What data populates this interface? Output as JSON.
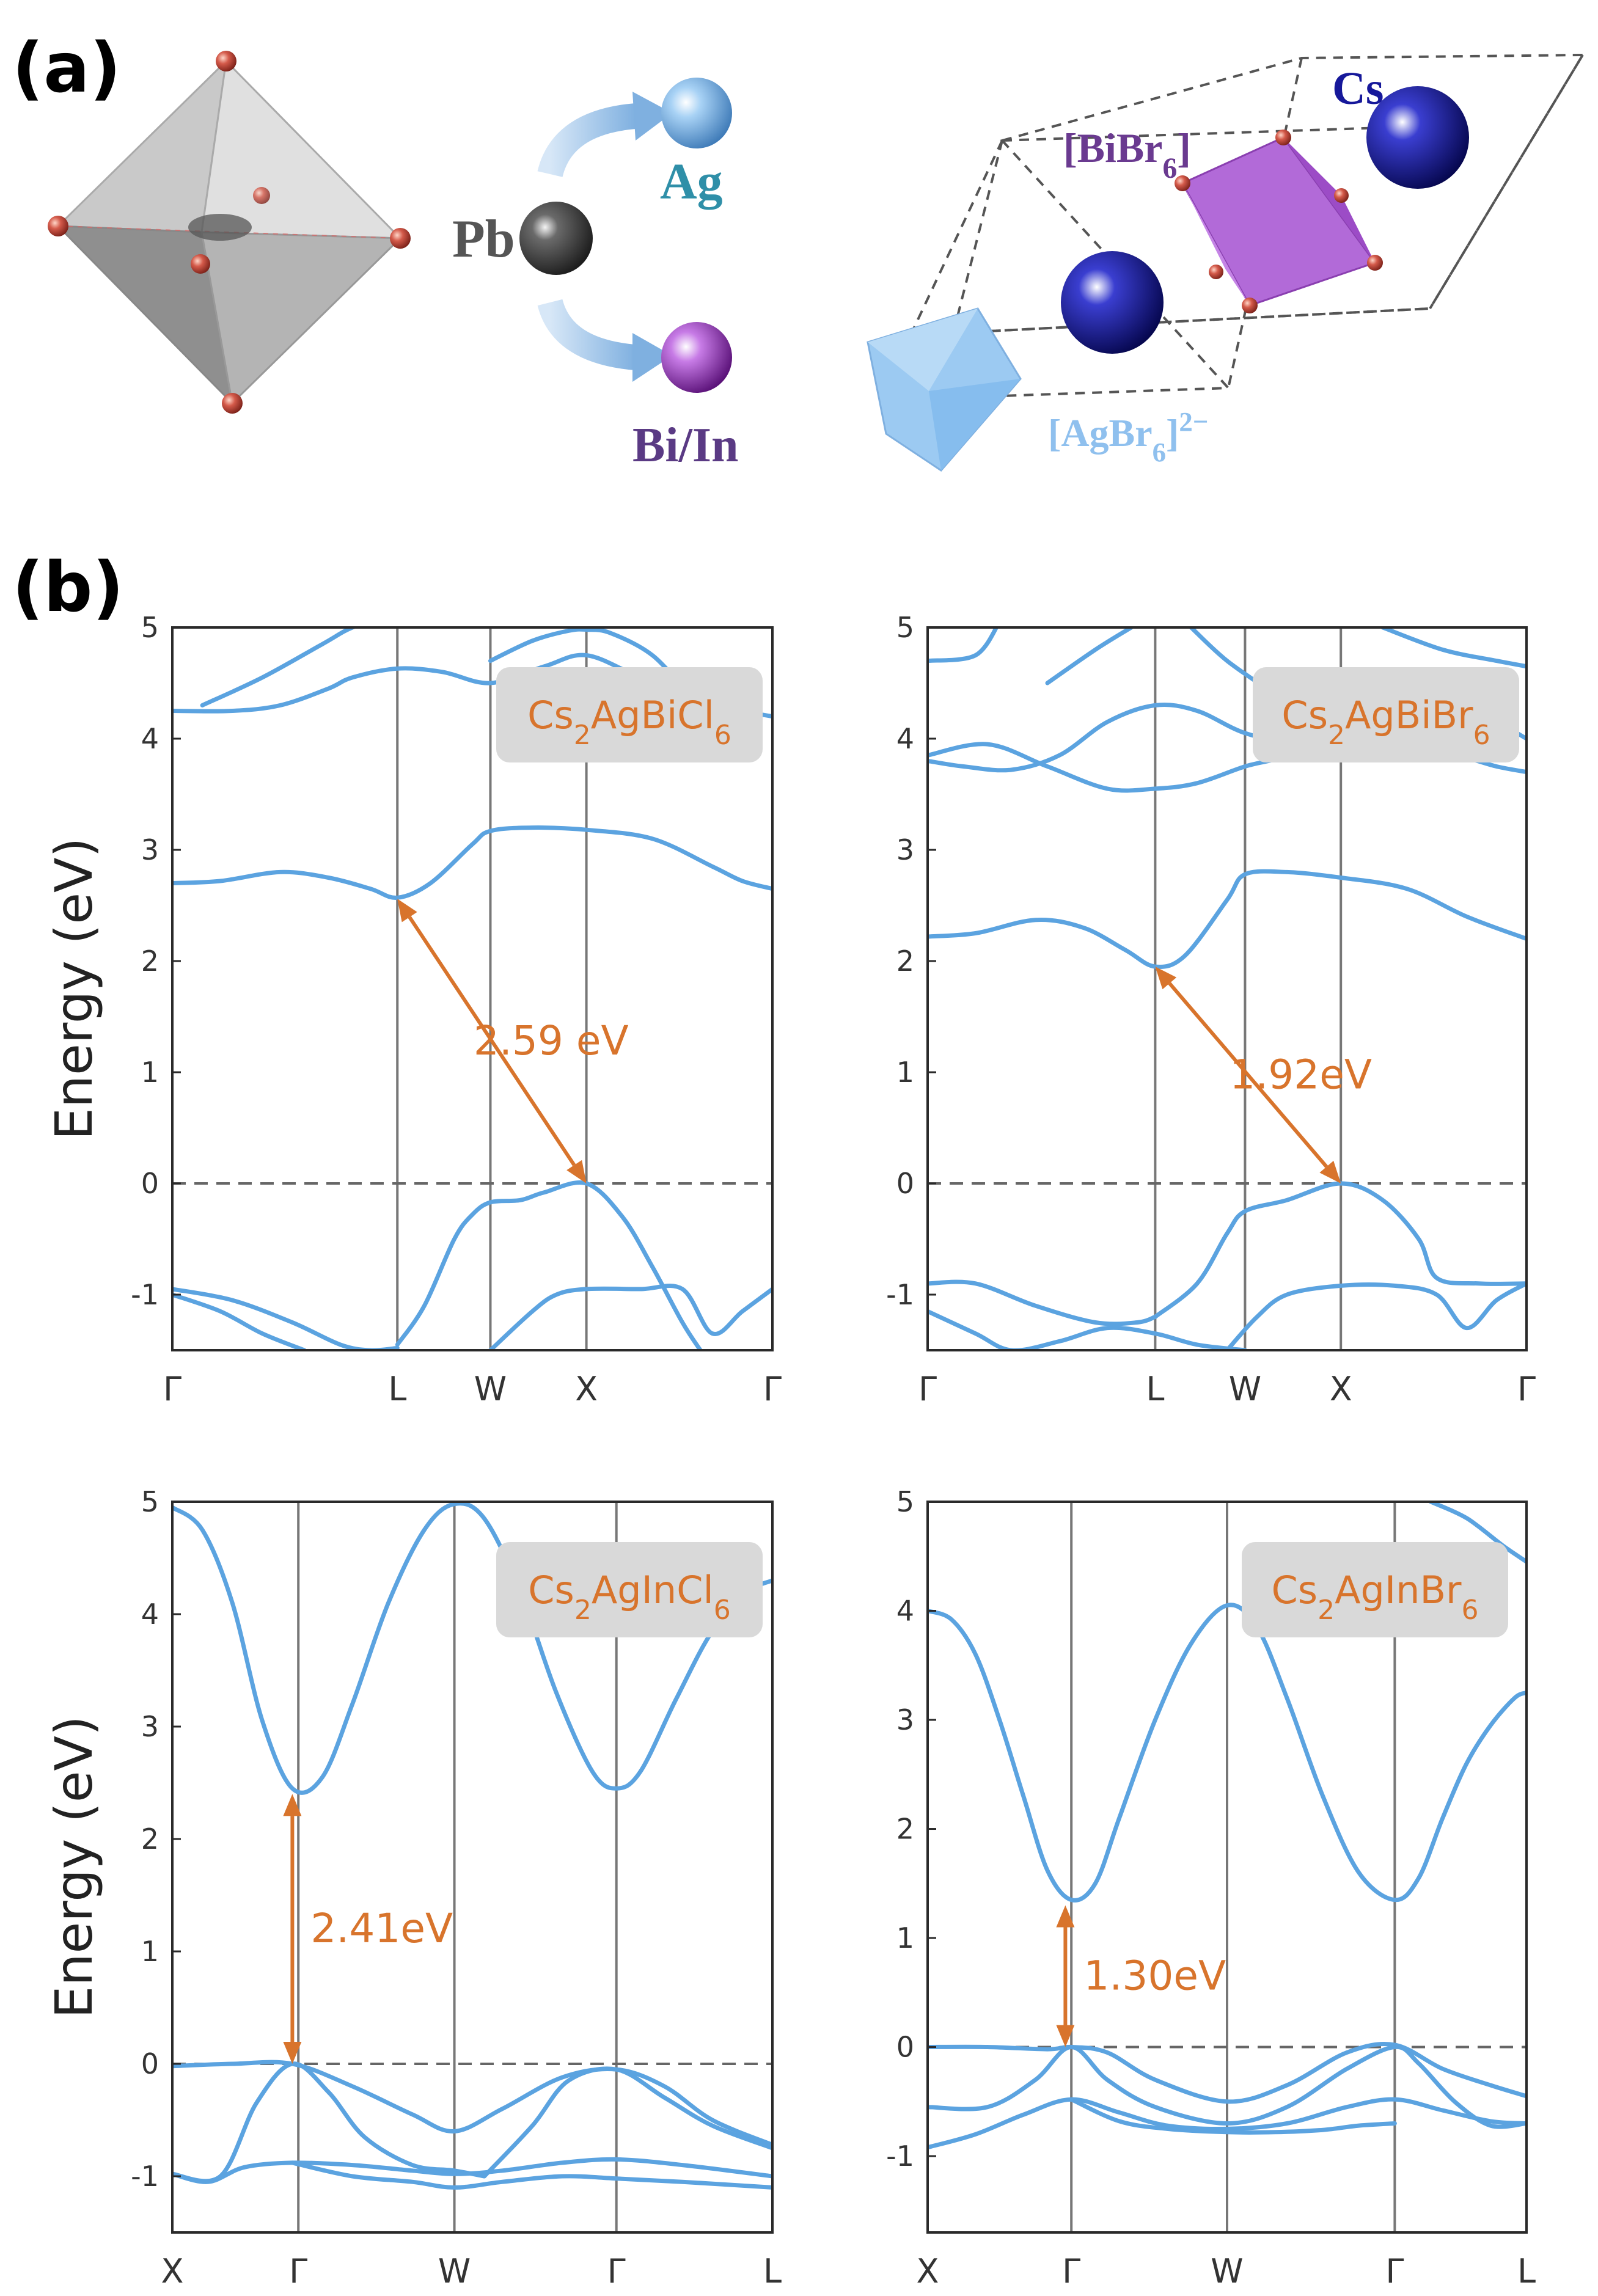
{
  "panel_a": {
    "label": "(a)",
    "pb_label": "Pb",
    "ag_label": "Ag",
    "biin_label": "Bi/In",
    "cs_label": "Cs",
    "bibr6_label": "[BiBr6]",
    "agbr6_label": "[AgBr6]2−",
    "colors": {
      "pb": "#3a3a3a",
      "ag": "#7fb6e6",
      "bi": "#a64bc8",
      "cs": "#16189a",
      "bibr6": "#b264d6",
      "agbr6": "#9ccaf2",
      "br": "#d45a4a",
      "octahedron": "#9d9d9d"
    }
  },
  "panel_b": {
    "label": "(b)"
  },
  "colors": {
    "band": "#5ba3e0",
    "arrow": "#d8742c",
    "fermi": "#666666",
    "kline": "#777777",
    "badge": "#d9d9d9"
  },
  "chart_data": [
    {
      "type": "line",
      "material": {
        "base": "Cs",
        "sub1": "2",
        "mid": "AgBiCl",
        "sub2": "6"
      },
      "ylabel": "Energy (eV)",
      "ylim": [
        -1.5,
        5
      ],
      "yticks": [
        -1,
        0,
        1,
        2,
        3,
        4,
        5
      ],
      "kpoints": [
        {
          "label": "Γ",
          "pos": 0
        },
        {
          "label": "L",
          "pos": 0.375
        },
        {
          "label": "W",
          "pos": 0.53
        },
        {
          "label": "X",
          "pos": 0.69
        },
        {
          "label": "Γ",
          "pos": 1.0
        }
      ],
      "fermi_level": 0,
      "gap": {
        "label": "2.59 eV",
        "from": [
          0.375,
          2.56
        ],
        "to": [
          0.69,
          0.0
        ]
      },
      "series": [
        {
          "x": [
            0,
            0.1,
            0.18,
            0.26,
            0.3,
            0.375,
            0.45,
            0.53,
            0.62,
            0.69,
            0.78,
            0.88,
            0.95,
            1.0
          ],
          "y": [
            4.25,
            4.25,
            4.3,
            4.45,
            4.55,
            4.63,
            4.6,
            4.5,
            4.65,
            4.75,
            4.55,
            4.35,
            4.25,
            4.2
          ]
        },
        {
          "x": [
            0.05,
            0.15,
            0.25,
            0.3,
            0.36
          ],
          "y": [
            4.3,
            4.55,
            4.85,
            5.0,
            5.1
          ]
        },
        {
          "x": [
            0.53,
            0.6,
            0.66,
            0.69,
            0.73,
            0.8,
            0.86
          ],
          "y": [
            4.7,
            4.88,
            4.97,
            4.98,
            4.95,
            4.75,
            4.4
          ]
        },
        {
          "x": [
            0,
            0.08,
            0.18,
            0.26,
            0.33,
            0.375,
            0.43,
            0.5,
            0.53,
            0.6,
            0.69,
            0.8,
            0.9,
            0.95,
            1.0
          ],
          "y": [
            2.7,
            2.72,
            2.8,
            2.75,
            2.65,
            2.57,
            2.7,
            3.05,
            3.17,
            3.2,
            3.18,
            3.1,
            2.85,
            2.72,
            2.65
          ]
        },
        {
          "x": [
            0.375,
            0.42,
            0.47,
            0.5,
            0.53,
            0.58,
            0.62,
            0.69,
            0.75,
            0.8,
            0.85,
            0.88
          ],
          "y": [
            -1.45,
            -1.1,
            -0.5,
            -0.28,
            -0.17,
            -0.15,
            -0.08,
            0.0,
            -0.3,
            -0.75,
            -1.25,
            -1.5
          ]
        },
        {
          "x": [
            0.53,
            0.6,
            0.64,
            0.69,
            0.78,
            0.85,
            0.9,
            0.95,
            1.0
          ],
          "y": [
            -1.5,
            -1.15,
            -1.0,
            -0.95,
            -0.95,
            -0.95,
            -1.35,
            -1.15,
            -0.95
          ]
        },
        {
          "x": [
            0,
            0.1,
            0.2,
            0.28,
            0.33,
            0.375
          ],
          "y": [
            -0.95,
            -1.05,
            -1.25,
            -1.45,
            -1.5,
            -1.48
          ]
        },
        {
          "x": [
            0,
            0.08,
            0.15,
            0.22
          ],
          "y": [
            -1.0,
            -1.15,
            -1.35,
            -1.5
          ]
        }
      ]
    },
    {
      "type": "line",
      "material": {
        "base": "Cs",
        "sub1": "2",
        "mid": "AgBiBr",
        "sub2": "6"
      },
      "ylabel": "",
      "ylim": [
        -1.5,
        5
      ],
      "yticks": [
        -1,
        0,
        1,
        2,
        3,
        4,
        5
      ],
      "kpoints": [
        {
          "label": "Γ",
          "pos": 0
        },
        {
          "label": "L",
          "pos": 0.38
        },
        {
          "label": "W",
          "pos": 0.53
        },
        {
          "label": "X",
          "pos": 0.69
        },
        {
          "label": "Γ",
          "pos": 1.0
        }
      ],
      "fermi_level": 0,
      "gap": {
        "label": "1.92eV",
        "from": [
          0.38,
          1.95
        ],
        "to": [
          0.69,
          0.0
        ]
      },
      "series": [
        {
          "x": [
            0,
            0.06,
            0.14,
            0.22,
            0.3,
            0.38,
            0.45,
            0.53,
            0.62,
            0.69,
            0.78,
            0.88,
            0.95,
            1.0
          ],
          "y": [
            3.8,
            3.75,
            3.72,
            3.85,
            4.15,
            4.3,
            4.25,
            4.05,
            3.95,
            3.95,
            3.9,
            3.85,
            3.75,
            3.7
          ]
        },
        {
          "x": [
            0,
            0.1,
            0.2,
            0.3,
            0.38,
            0.45,
            0.53,
            0.6,
            0.69,
            0.8,
            0.9,
            1.0
          ],
          "y": [
            3.85,
            3.95,
            3.75,
            3.55,
            3.55,
            3.6,
            3.75,
            3.85,
            4.1,
            4.45,
            4.3,
            4.0
          ]
        },
        {
          "x": [
            0,
            0.08,
            0.12
          ],
          "y": [
            4.7,
            4.75,
            5.05
          ]
        },
        {
          "x": [
            0.2,
            0.28,
            0.34
          ],
          "y": [
            4.5,
            4.8,
            5.0
          ]
        },
        {
          "x": [
            0.44,
            0.5,
            0.58
          ],
          "y": [
            5.0,
            4.7,
            4.4
          ]
        },
        {
          "x": [
            0.76,
            0.86,
            0.95,
            1.0
          ],
          "y": [
            5.0,
            4.8,
            4.7,
            4.65
          ]
        },
        {
          "x": [
            0,
            0.08,
            0.18,
            0.26,
            0.33,
            0.38,
            0.43,
            0.5,
            0.53,
            0.6,
            0.69,
            0.8,
            0.9,
            1.0
          ],
          "y": [
            2.22,
            2.25,
            2.37,
            2.3,
            2.1,
            1.95,
            2.05,
            2.55,
            2.78,
            2.8,
            2.75,
            2.65,
            2.4,
            2.2
          ]
        },
        {
          "x": [
            0.38,
            0.45,
            0.5,
            0.53,
            0.6,
            0.69,
            0.76,
            0.82,
            0.85,
            0.92,
            1.0
          ],
          "y": [
            -1.2,
            -0.9,
            -0.45,
            -0.25,
            -0.15,
            0.0,
            -0.15,
            -0.5,
            -0.85,
            -0.9,
            -0.9
          ]
        },
        {
          "x": [
            0.5,
            0.55,
            0.6,
            0.69,
            0.78,
            0.85,
            0.9,
            0.95,
            1.0
          ],
          "y": [
            -1.5,
            -1.2,
            -1.0,
            -0.92,
            -0.92,
            -1.0,
            -1.3,
            -1.05,
            -0.9
          ]
        },
        {
          "x": [
            0,
            0.08,
            0.18,
            0.28,
            0.35,
            0.38
          ],
          "y": [
            -0.9,
            -0.9,
            -1.1,
            -1.25,
            -1.25,
            -1.2
          ]
        },
        {
          "x": [
            0,
            0.08,
            0.14,
            0.22,
            0.3,
            0.38,
            0.45,
            0.53
          ],
          "y": [
            -1.15,
            -1.35,
            -1.5,
            -1.42,
            -1.3,
            -1.35,
            -1.45,
            -1.5
          ]
        }
      ]
    },
    {
      "type": "line",
      "material": {
        "base": "Cs",
        "sub1": "2",
        "mid": "AgInCl",
        "sub2": "6"
      },
      "ylabel": "Energy (eV)",
      "ylim": [
        -1.5,
        5
      ],
      "yticks": [
        -1,
        0,
        1,
        2,
        3,
        4,
        5
      ],
      "kpoints": [
        {
          "label": "X",
          "pos": 0
        },
        {
          "label": "Γ",
          "pos": 0.21
        },
        {
          "label": "W",
          "pos": 0.47
        },
        {
          "label": "Γ",
          "pos": 0.74
        },
        {
          "label": "L",
          "pos": 1.0
        }
      ],
      "fermi_level": 0,
      "gap": {
        "label": "2.41eV",
        "from": [
          0.2,
          0.0
        ],
        "to": [
          0.2,
          2.4
        ]
      },
      "series": [
        {
          "x": [
            0,
            0.05,
            0.1,
            0.15,
            0.2,
            0.25,
            0.3,
            0.36,
            0.42,
            0.47,
            0.52,
            0.58,
            0.64,
            0.7,
            0.74,
            0.78,
            0.84,
            0.9,
            0.96,
            1.0
          ],
          "y": [
            4.95,
            4.75,
            4.1,
            3.05,
            2.45,
            2.55,
            3.2,
            4.1,
            4.75,
            4.98,
            4.85,
            4.2,
            3.3,
            2.6,
            2.45,
            2.6,
            3.25,
            3.85,
            4.2,
            4.3
          ]
        },
        {
          "x": [
            0,
            0.1,
            0.2,
            0.3,
            0.4,
            0.47,
            0.55,
            0.65,
            0.74,
            0.82,
            0.9,
            1.0
          ],
          "y": [
            -0.02,
            0.0,
            0.0,
            -0.2,
            -0.45,
            -0.6,
            -0.4,
            -0.12,
            -0.05,
            -0.2,
            -0.5,
            -0.72
          ]
        },
        {
          "x": [
            0,
            0.08,
            0.14,
            0.2,
            0.26,
            0.32,
            0.4,
            0.47,
            0.52
          ],
          "y": [
            -0.98,
            -1.0,
            -0.35,
            0.0,
            -0.25,
            -0.65,
            -0.9,
            -0.95,
            -1.0
          ]
        },
        {
          "x": [
            0.52,
            0.6,
            0.66,
            0.74,
            0.82,
            0.9,
            1.0
          ],
          "y": [
            -1.0,
            -0.55,
            -0.15,
            -0.05,
            -0.3,
            -0.55,
            -0.75
          ]
        },
        {
          "x": [
            0,
            0.06,
            0.12,
            0.2,
            0.3,
            0.4,
            0.47,
            0.55,
            0.65,
            0.74,
            0.85,
            1.0
          ],
          "y": [
            -0.98,
            -1.05,
            -0.92,
            -0.88,
            -0.9,
            -0.95,
            -0.98,
            -0.95,
            -0.88,
            -0.85,
            -0.9,
            -1.0
          ]
        },
        {
          "x": [
            0.2,
            0.3,
            0.4,
            0.47,
            0.55,
            0.65,
            0.74,
            0.85,
            1.0
          ],
          "y": [
            -0.88,
            -1.0,
            -1.05,
            -1.1,
            -1.05,
            -1.0,
            -1.02,
            -1.05,
            -1.1
          ]
        }
      ]
    },
    {
      "type": "line",
      "material": {
        "base": "Cs",
        "sub1": "2",
        "mid": "AgInBr",
        "sub2": "6"
      },
      "ylabel": "",
      "ylim": [
        -1.7,
        5
      ],
      "yticks": [
        -1,
        0,
        1,
        2,
        3,
        4,
        5
      ],
      "kpoints": [
        {
          "label": "X",
          "pos": 0
        },
        {
          "label": "Γ",
          "pos": 0.24
        },
        {
          "label": "W",
          "pos": 0.5
        },
        {
          "label": "Γ",
          "pos": 0.78
        },
        {
          "label": "L",
          "pos": 1.0
        }
      ],
      "fermi_level": 0,
      "gap": {
        "label": "1.30eV",
        "from": [
          0.23,
          0.0
        ],
        "to": [
          0.23,
          1.3
        ]
      },
      "series": [
        {
          "x": [
            0,
            0.04,
            0.08,
            0.12,
            0.16,
            0.2,
            0.24,
            0.28,
            0.32,
            0.38,
            0.44,
            0.5,
            0.55,
            0.6,
            0.66,
            0.72,
            0.78,
            0.82,
            0.86,
            0.9,
            0.94,
            0.98,
            1.0
          ],
          "y": [
            4.0,
            3.92,
            3.6,
            3.0,
            2.3,
            1.62,
            1.35,
            1.5,
            2.1,
            3.0,
            3.7,
            4.05,
            3.85,
            3.2,
            2.3,
            1.6,
            1.35,
            1.55,
            2.1,
            2.6,
            2.95,
            3.2,
            3.25
          ]
        },
        {
          "x": [
            0.84,
            0.9,
            0.96,
            1.0
          ],
          "y": [
            5.0,
            4.85,
            4.6,
            4.45
          ]
        },
        {
          "x": [
            0,
            0.1,
            0.2,
            0.24,
            0.3,
            0.38,
            0.5,
            0.6,
            0.7,
            0.78,
            0.86,
            0.94,
            1.0
          ],
          "y": [
            0.0,
            0.0,
            -0.02,
            0.0,
            -0.05,
            -0.3,
            -0.5,
            -0.35,
            -0.05,
            0.02,
            -0.2,
            -0.35,
            -0.45
          ]
        },
        {
          "x": [
            0,
            0.1,
            0.18,
            0.24,
            0.3,
            0.38,
            0.5,
            0.6,
            0.7,
            0.78,
            0.82,
            0.88,
            0.94,
            1.0
          ],
          "y": [
            -0.55,
            -0.55,
            -0.3,
            0.0,
            -0.3,
            -0.55,
            -0.7,
            -0.55,
            -0.2,
            0.0,
            -0.15,
            -0.5,
            -0.72,
            -0.7
          ]
        },
        {
          "x": [
            0,
            0.08,
            0.16,
            0.24,
            0.32,
            0.4,
            0.5,
            0.6,
            0.7,
            0.78,
            0.86,
            0.94,
            1.0
          ],
          "y": [
            -0.92,
            -0.8,
            -0.62,
            -0.48,
            -0.6,
            -0.72,
            -0.75,
            -0.7,
            -0.55,
            -0.48,
            -0.58,
            -0.68,
            -0.7
          ]
        },
        {
          "x": [
            0.24,
            0.32,
            0.4,
            0.5,
            0.58,
            0.66,
            0.72,
            0.78
          ],
          "y": [
            -0.48,
            -0.68,
            -0.75,
            -0.78,
            -0.78,
            -0.76,
            -0.72,
            -0.7
          ]
        }
      ]
    }
  ]
}
